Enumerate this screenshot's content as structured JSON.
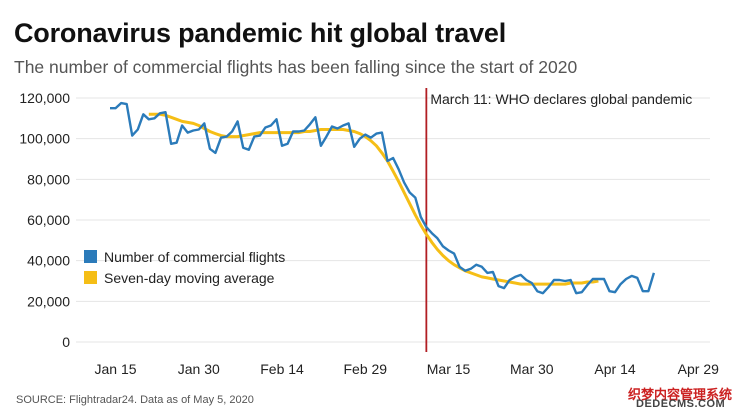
{
  "header": {
    "title": "Coronavirus pandemic hit global travel",
    "subtitle": "The number of commercial flights has been falling since the start of 2020"
  },
  "footer": {
    "source": "SOURCE: Flightradar24. Data as of May 5, 2020",
    "watermark": "织梦内容管理系统",
    "watermark_sub": "DEDECMS.COM"
  },
  "chart_data": {
    "type": "line",
    "title": "Coronavirus pandemic hit global travel",
    "subtitle": "The number of commercial flights has been falling since the start of 2020",
    "xlabel": "",
    "ylabel": "",
    "x_start": "Jan 14",
    "x_tick_labels": [
      "Jan 15",
      "Jan 30",
      "Feb 14",
      "Feb 29",
      "Mar 15",
      "Mar 30",
      "Apr 14",
      "Apr 29"
    ],
    "x_tick_days": [
      1,
      16,
      31,
      46,
      61,
      76,
      91,
      106
    ],
    "y_tick_labels": [
      "0",
      "20,000",
      "40,000",
      "60,000",
      "80,000",
      "100,000",
      "120,000"
    ],
    "y_ticks": [
      0,
      20000,
      40000,
      60000,
      80000,
      100000,
      120000
    ],
    "ylim": [
      0,
      120000
    ],
    "grid": true,
    "legend_position": "left",
    "colors": {
      "flights": "#2b7bba",
      "average": "#f5be16",
      "event": "#b11e23"
    },
    "event_line": {
      "day": 57,
      "label": "March 11: WHO declares global pandemic"
    },
    "series": [
      {
        "name": "Number of commercial flights",
        "values": [
          115000,
          115000,
          117500,
          117000,
          101500,
          104500,
          112000,
          109500,
          110000,
          112500,
          113000,
          97500,
          98000,
          106500,
          103000,
          104000,
          104500,
          107500,
          95000,
          93000,
          100500,
          101000,
          103500,
          108500,
          95500,
          94500,
          101000,
          101500,
          105500,
          106500,
          109500,
          96500,
          97500,
          103500,
          103500,
          104000,
          107000,
          110500,
          96500,
          101000,
          106000,
          105000,
          106500,
          107500,
          96000,
          100000,
          102000,
          100500,
          102500,
          103000,
          89000,
          90500,
          85000,
          78500,
          73500,
          71000,
          61500,
          56500,
          53500,
          51000,
          47000,
          45000,
          43500,
          37000,
          35000,
          36000,
          38000,
          37000,
          34000,
          34500,
          27500,
          26500,
          30500,
          32000,
          33000,
          30500,
          29000,
          25000,
          24000,
          27000,
          30500,
          30500,
          30000,
          30500,
          24000,
          24500,
          28000,
          31000,
          31000,
          31000,
          25000,
          24500,
          28500,
          31000,
          32500,
          31500,
          25000,
          25000,
          34000
        ],
        "days_start": 0
      },
      {
        "name": "Seven-day moving average",
        "values": [
          112000,
          112000,
          112000,
          111500,
          110500,
          109500,
          108500,
          108000,
          107500,
          106500,
          105000,
          103500,
          102500,
          101500,
          101000,
          101000,
          101000,
          101500,
          102000,
          102500,
          103000,
          103000,
          103000,
          103000,
          103000,
          103000,
          103000,
          103000,
          103500,
          103500,
          104000,
          104500,
          104500,
          104500,
          104500,
          104500,
          104000,
          103500,
          102500,
          101000,
          99000,
          96500,
          93000,
          89000,
          84000,
          79000,
          73500,
          68000,
          62500,
          57500,
          53000,
          49000,
          45500,
          42500,
          40000,
          38000,
          36500,
          35000,
          34000,
          33000,
          32000,
          31500,
          31000,
          30500,
          30000,
          29500,
          29000,
          28500,
          28500,
          28500,
          28500,
          28500,
          28500,
          28500,
          28500,
          28500,
          29000,
          29000,
          29000,
          29500,
          29500,
          30000
        ],
        "days_start": 7
      }
    ]
  }
}
